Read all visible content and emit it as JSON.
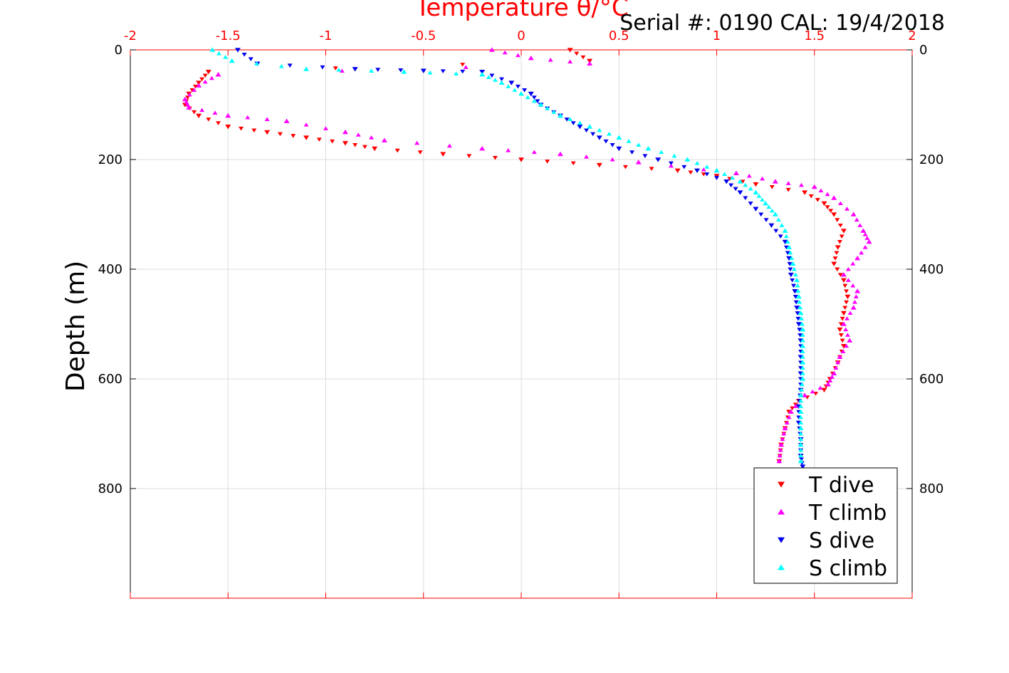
{
  "chart_data": {
    "type": "scatter",
    "title": "Temperature θ/°C",
    "subtitle": "Serial #: 0190  CAL: 19/4/2018",
    "ylabel": "Depth (m)",
    "xlabel": "",
    "xlim": [
      -2,
      2
    ],
    "ylim": [
      0,
      1000
    ],
    "y_reversed": true,
    "x_axis_position": "top",
    "x_tick_labels": [
      "-2",
      "-1.5",
      "-1",
      "-0.5",
      "0",
      "0.5",
      "1",
      "1.5",
      "2"
    ],
    "y_tick_labels": [
      "0",
      "200",
      "400",
      "600",
      "800"
    ],
    "grid": true,
    "legend_position": "bottom-right",
    "colors": {
      "axis_top": "#ff0000",
      "t_dive": "#ff0000",
      "t_climb": "#ff00ff",
      "s_dive": "#0000ee",
      "s_climb": "#00ffff"
    },
    "series": [
      {
        "name": "T dive",
        "marker": "triangle-down",
        "color": "#ff0000",
        "points": [
          [
            0.25,
            0
          ],
          [
            0.35,
            20
          ],
          [
            -1.6,
            40
          ],
          [
            -1.65,
            60
          ],
          [
            -1.7,
            80
          ],
          [
            -1.72,
            100
          ],
          [
            -1.65,
            120
          ],
          [
            -1.5,
            140
          ],
          [
            -1.3,
            150
          ],
          [
            -1.1,
            160
          ],
          [
            -0.9,
            170
          ],
          [
            -0.75,
            180
          ],
          [
            -0.4,
            190
          ],
          [
            0.0,
            200
          ],
          [
            0.4,
            210
          ],
          [
            0.8,
            220
          ],
          [
            1.0,
            230
          ],
          [
            1.2,
            245
          ],
          [
            1.45,
            260
          ],
          [
            1.55,
            280
          ],
          [
            1.6,
            300
          ],
          [
            1.65,
            330
          ],
          [
            1.62,
            360
          ],
          [
            1.6,
            390
          ],
          [
            1.65,
            420
          ],
          [
            1.67,
            450
          ],
          [
            1.65,
            480
          ],
          [
            1.63,
            510
          ],
          [
            1.65,
            540
          ],
          [
            1.62,
            570
          ],
          [
            1.58,
            600
          ],
          [
            1.55,
            620
          ],
          [
            1.42,
            640
          ],
          [
            1.37,
            660
          ],
          [
            1.35,
            690
          ],
          [
            1.33,
            720
          ],
          [
            1.32,
            750
          ]
        ]
      },
      {
        "name": "T climb",
        "marker": "triangle-up",
        "color": "#ff00ff",
        "points": [
          [
            -0.15,
            0
          ],
          [
            0.05,
            15
          ],
          [
            0.35,
            25
          ],
          [
            -1.55,
            45
          ],
          [
            -1.65,
            65
          ],
          [
            -1.72,
            90
          ],
          [
            -1.7,
            105
          ],
          [
            -1.5,
            120
          ],
          [
            -1.2,
            130
          ],
          [
            -0.9,
            150
          ],
          [
            -0.7,
            165
          ],
          [
            -0.2,
            180
          ],
          [
            0.2,
            190
          ],
          [
            0.6,
            205
          ],
          [
            1.1,
            225
          ],
          [
            1.3,
            240
          ],
          [
            1.5,
            250
          ],
          [
            1.6,
            270
          ],
          [
            1.7,
            300
          ],
          [
            1.75,
            330
          ],
          [
            1.78,
            350
          ],
          [
            1.72,
            380
          ],
          [
            1.65,
            410
          ],
          [
            1.72,
            440
          ],
          [
            1.7,
            470
          ],
          [
            1.65,
            500
          ],
          [
            1.68,
            530
          ],
          [
            1.63,
            560
          ],
          [
            1.6,
            590
          ],
          [
            1.57,
            610
          ],
          [
            1.45,
            630
          ],
          [
            1.38,
            660
          ],
          [
            1.35,
            690
          ],
          [
            1.33,
            720
          ],
          [
            1.32,
            750
          ]
        ]
      },
      {
        "name": "S dive",
        "marker": "triangle-down",
        "color": "#0000ee",
        "points": [
          [
            -1.45,
            0
          ],
          [
            -1.35,
            25
          ],
          [
            -0.85,
            35
          ],
          [
            -0.5,
            38
          ],
          [
            -0.2,
            40
          ],
          [
            -0.05,
            60
          ],
          [
            0.05,
            80
          ],
          [
            0.1,
            100
          ],
          [
            0.2,
            120
          ],
          [
            0.3,
            140
          ],
          [
            0.4,
            160
          ],
          [
            0.5,
            180
          ],
          [
            0.7,
            200
          ],
          [
            0.9,
            220
          ],
          [
            1.05,
            240
          ],
          [
            1.12,
            260
          ],
          [
            1.2,
            290
          ],
          [
            1.28,
            320
          ],
          [
            1.35,
            350
          ],
          [
            1.37,
            380
          ],
          [
            1.38,
            410
          ],
          [
            1.4,
            440
          ],
          [
            1.41,
            470
          ],
          [
            1.42,
            500
          ],
          [
            1.43,
            530
          ],
          [
            1.43,
            560
          ],
          [
            1.43,
            590
          ],
          [
            1.43,
            620
          ],
          [
            1.42,
            650
          ],
          [
            1.42,
            680
          ],
          [
            1.43,
            710
          ],
          [
            1.43,
            740
          ],
          [
            1.44,
            760
          ]
        ]
      },
      {
        "name": "S climb",
        "marker": "triangle-up",
        "color": "#00ffff",
        "points": [
          [
            -1.58,
            0
          ],
          [
            -1.48,
            20
          ],
          [
            -1.1,
            35
          ],
          [
            -0.6,
            40
          ],
          [
            -0.2,
            45
          ],
          [
            -0.1,
            60
          ],
          [
            0.0,
            80
          ],
          [
            0.1,
            100
          ],
          [
            0.2,
            120
          ],
          [
            0.35,
            140
          ],
          [
            0.5,
            160
          ],
          [
            0.65,
            180
          ],
          [
            0.85,
            200
          ],
          [
            1.0,
            220
          ],
          [
            1.12,
            240
          ],
          [
            1.2,
            260
          ],
          [
            1.25,
            280
          ],
          [
            1.3,
            300
          ],
          [
            1.35,
            330
          ],
          [
            1.37,
            360
          ],
          [
            1.39,
            390
          ],
          [
            1.41,
            420
          ],
          [
            1.42,
            450
          ],
          [
            1.43,
            480
          ],
          [
            1.44,
            510
          ],
          [
            1.44,
            540
          ],
          [
            1.44,
            570
          ],
          [
            1.44,
            600
          ],
          [
            1.43,
            630
          ],
          [
            1.43,
            660
          ],
          [
            1.43,
            690
          ],
          [
            1.43,
            720
          ],
          [
            1.43,
            750
          ]
        ]
      }
    ]
  }
}
